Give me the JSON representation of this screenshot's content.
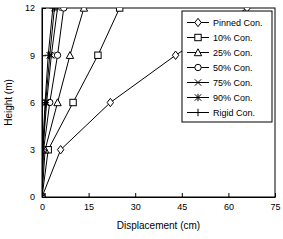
{
  "chart_data": {
    "type": "line",
    "x_label": "Displacement (cm)",
    "y_label": "Height (m)",
    "xlim": [
      0,
      75
    ],
    "xticks": [
      0,
      15,
      30,
      45,
      60,
      75
    ],
    "ylim": [
      0,
      12
    ],
    "yticks": [
      0,
      3,
      6,
      9,
      12
    ],
    "grid": false,
    "legend": "top-right",
    "series": [
      {
        "name": "Pinned Con.",
        "color": "#000000",
        "marker": "diamond",
        "line_style": "solid",
        "x": [
          0,
          6,
          22,
          43,
          66
        ],
        "values": [
          0,
          3,
          6,
          9,
          12
        ]
      },
      {
        "name": "10% Con.",
        "color": "#000000",
        "marker": "square",
        "line_style": "solid",
        "x": [
          0,
          2,
          10,
          18,
          25
        ],
        "values": [
          0,
          3,
          6,
          9,
          12
        ]
      },
      {
        "name": "25% Con.",
        "color": "#000000",
        "marker": "triangle",
        "line_style": "solid",
        "x": [
          0,
          1,
          5,
          9,
          13.5
        ],
        "values": [
          0,
          3,
          6,
          9,
          12
        ]
      },
      {
        "name": "50% Con.",
        "color": "#000000",
        "marker": "circle",
        "line_style": "solid",
        "x": [
          0,
          0.5,
          2.5,
          5,
          7
        ],
        "values": [
          0,
          3,
          6,
          9,
          12
        ]
      },
      {
        "name": "75% Con.",
        "color": "#000000",
        "marker": "x",
        "line_style": "solid",
        "x": [
          0,
          0.3,
          1.5,
          3,
          5
        ],
        "values": [
          0,
          3,
          6,
          9,
          12
        ]
      },
      {
        "name": "90% Con.",
        "color": "#000000",
        "marker": "asterisk",
        "line_style": "solid",
        "x": [
          0,
          0.3,
          1.2,
          2.5,
          4
        ],
        "values": [
          0,
          3,
          6,
          9,
          12
        ]
      },
      {
        "name": "Rigid Con.",
        "color": "#000000",
        "marker": "plus",
        "line_style": "solid",
        "x": [
          0,
          0.2,
          1,
          2,
          3.5
        ],
        "values": [
          0,
          3,
          6,
          9,
          12
        ]
      }
    ]
  }
}
